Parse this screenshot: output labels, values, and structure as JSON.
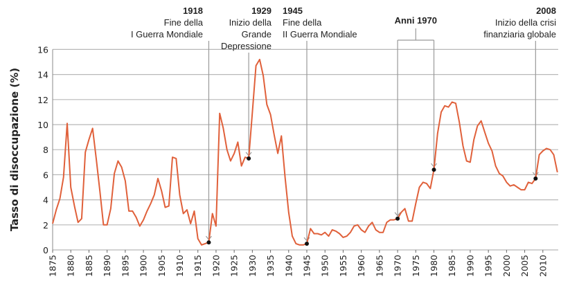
{
  "chart_data": {
    "type": "line",
    "title": "",
    "xlabel": "",
    "ylabel": "Tasso di disoccupazione (%)",
    "xlim": [
      1875,
      2015
    ],
    "ylim": [
      0,
      16
    ],
    "yticks": [
      0,
      2,
      4,
      6,
      8,
      10,
      12,
      14,
      16
    ],
    "xticks": [
      1875,
      1880,
      1885,
      1890,
      1895,
      1900,
      1905,
      1910,
      1915,
      1920,
      1925,
      1930,
      1935,
      1940,
      1945,
      1950,
      1955,
      1960,
      1965,
      1970,
      1975,
      1980,
      1985,
      1990,
      1995,
      2000,
      2005,
      2010
    ],
    "grid": "horizontal",
    "line_color": "#e0603a",
    "x": [
      1875,
      1876,
      1877,
      1878,
      1879,
      1880,
      1881,
      1882,
      1883,
      1884,
      1885,
      1886,
      1887,
      1888,
      1889,
      1890,
      1891,
      1892,
      1893,
      1894,
      1895,
      1896,
      1897,
      1898,
      1899,
      1900,
      1901,
      1902,
      1903,
      1904,
      1905,
      1906,
      1907,
      1908,
      1909,
      1910,
      1911,
      1912,
      1913,
      1914,
      1915,
      1916,
      1917,
      1918,
      1919,
      1920,
      1921,
      1922,
      1923,
      1924,
      1925,
      1926,
      1927,
      1928,
      1929,
      1930,
      1931,
      1932,
      1933,
      1934,
      1935,
      1936,
      1937,
      1938,
      1939,
      1940,
      1941,
      1942,
      1943,
      1944,
      1945,
      1946,
      1947,
      1948,
      1949,
      1950,
      1951,
      1952,
      1953,
      1954,
      1955,
      1956,
      1957,
      1958,
      1959,
      1960,
      1961,
      1962,
      1963,
      1964,
      1965,
      1966,
      1967,
      1968,
      1969,
      1970,
      1971,
      1972,
      1973,
      1974,
      1975,
      1976,
      1977,
      1978,
      1979,
      1980,
      1981,
      1982,
      1983,
      1984,
      1985,
      1986,
      1987,
      1988,
      1989,
      1990,
      1991,
      1992,
      1993,
      1994,
      1995,
      1996,
      1997,
      1998,
      1999,
      2000,
      2001,
      2002,
      2003,
      2004,
      2005,
      2006,
      2007,
      2008,
      2009,
      2010,
      2011,
      2012,
      2013,
      2014
    ],
    "y": [
      2.1,
      3.2,
      4.1,
      5.8,
      10.1,
      5.0,
      3.5,
      2.2,
      2.5,
      7.8,
      8.8,
      9.7,
      7.3,
      4.7,
      2.0,
      2.0,
      3.3,
      6.1,
      7.1,
      6.6,
      5.5,
      3.1,
      3.1,
      2.6,
      1.9,
      2.4,
      3.1,
      3.7,
      4.4,
      5.7,
      4.7,
      3.4,
      3.5,
      7.4,
      7.3,
      4.4,
      2.9,
      3.2,
      2.1,
      3.1,
      0.9,
      0.4,
      0.5,
      0.6,
      2.9,
      1.9,
      10.9,
      9.7,
      8.0,
      7.1,
      7.7,
      8.6,
      6.7,
      7.4,
      7.3,
      11.0,
      14.7,
      15.2,
      13.9,
      11.6,
      10.8,
      9.2,
      7.7,
      9.1,
      5.8,
      3.0,
      1.1,
      0.5,
      0.4,
      0.4,
      0.5,
      1.7,
      1.3,
      1.3,
      1.2,
      1.4,
      1.1,
      1.6,
      1.5,
      1.3,
      1.0,
      1.1,
      1.4,
      1.9,
      2.0,
      1.6,
      1.4,
      1.9,
      2.2,
      1.6,
      1.4,
      1.4,
      2.2,
      2.4,
      2.4,
      2.5,
      3.0,
      3.3,
      2.3,
      2.3,
      3.7,
      5.0,
      5.4,
      5.3,
      4.9,
      6.4,
      9.3,
      11.0,
      11.5,
      11.4,
      11.8,
      11.7,
      10.2,
      8.3,
      7.1,
      7.0,
      8.8,
      9.9,
      10.3,
      9.4,
      8.5,
      7.9,
      6.7,
      6.1,
      5.9,
      5.4,
      5.1,
      5.2,
      5.0,
      4.8,
      4.8,
      5.4,
      5.3,
      5.7,
      7.6,
      7.9,
      8.1,
      8.0,
      7.6,
      6.2
    ],
    "annotations": [
      {
        "year": 1918,
        "value": 0.6,
        "bold": "1918",
        "lines": [
          "Fine della",
          "I Guerra Mondiale"
        ]
      },
      {
        "year": 1929,
        "value": 7.3,
        "bold": "1929",
        "lines": [
          "Inizio della",
          "Grande",
          "Depressione"
        ]
      },
      {
        "year": 1945,
        "value": 0.5,
        "bold": "1945",
        "lines": [
          "Fine della",
          "II Guerra Mondiale"
        ]
      },
      {
        "year": 2008,
        "value": 5.7,
        "bold": "2008",
        "lines": [
          "Inizio della crisi",
          "finanziaria globale"
        ]
      }
    ],
    "bracket_annotation": {
      "label": "Anni 1970",
      "from": 1970,
      "to": 1980,
      "from_value": 2.5,
      "to_value": 6.4
    }
  }
}
